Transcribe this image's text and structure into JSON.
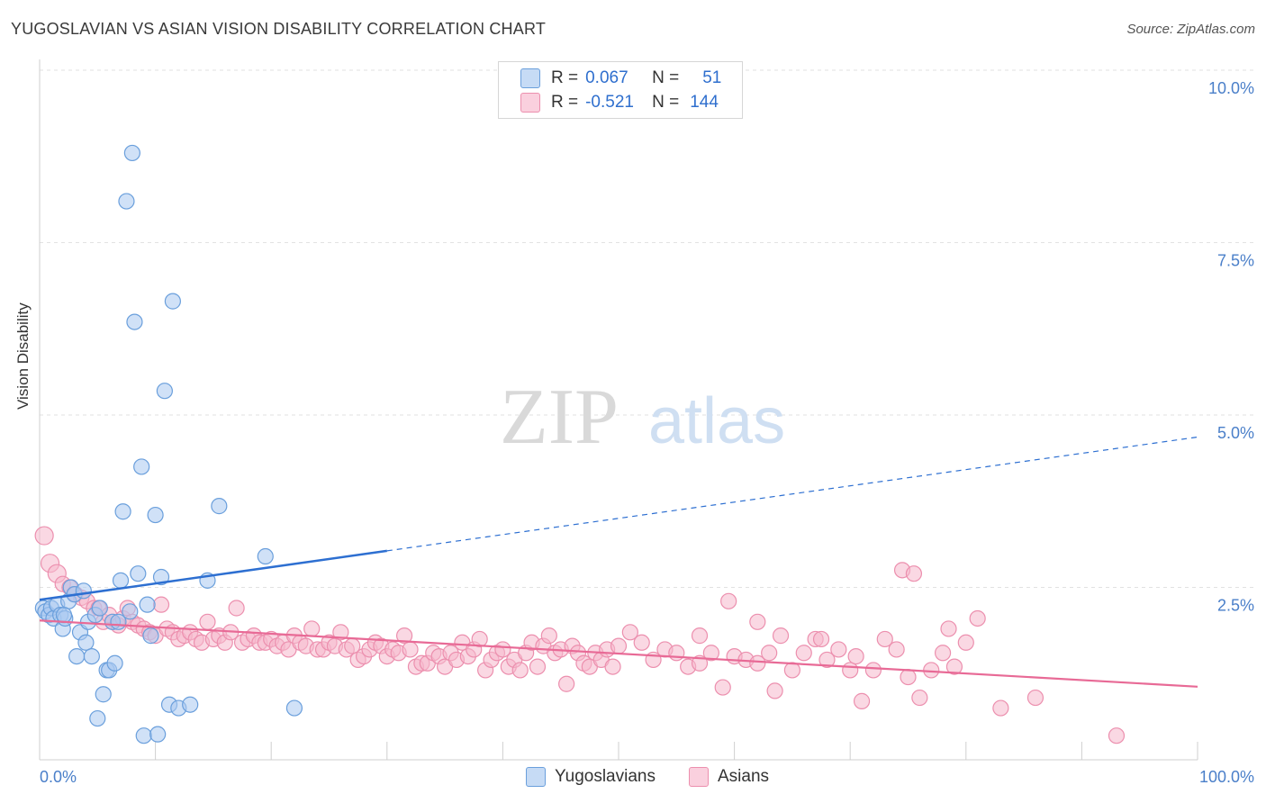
{
  "header": {
    "title": "YUGOSLAVIAN VS ASIAN VISION DISABILITY CORRELATION CHART",
    "source": "Source: ZipAtlas.com"
  },
  "watermark": {
    "zip": "ZIP",
    "atlas": "atlas"
  },
  "legend": {
    "rows": [
      {
        "r_label": "R =",
        "r_value": "0.067",
        "n_label": "N =",
        "n_value": "51",
        "color": "#a9c8f0"
      },
      {
        "r_label": "R =",
        "r_value": "-0.521",
        "n_label": "N =",
        "n_value": "144",
        "color": "#f6b8cc"
      }
    ]
  },
  "colors": {
    "blue_fill": "#a9c8f0",
    "blue_stroke": "#6a9fdc",
    "blue_line": "#2d6fd1",
    "pink_fill": "#f6b8cc",
    "pink_stroke": "#ec8fae",
    "pink_line": "#e86a96",
    "tick_label": "#4a7fc9"
  },
  "chart_data": {
    "type": "scatter",
    "title": "YUGOSLAVIAN VS ASIAN VISION DISABILITY CORRELATION CHART",
    "xlabel": "",
    "ylabel": "Vision Disability",
    "xlim": [
      0,
      100
    ],
    "ylim": [
      0,
      10
    ],
    "x_tick_labels": [
      "0.0%",
      "100.0%"
    ],
    "y_ticks": [
      2.5,
      5.0,
      7.5,
      10.0
    ],
    "y_tick_labels": [
      "2.5%",
      "5.0%",
      "7.5%",
      "10.0%"
    ],
    "grid": true,
    "legend_position": "top-center",
    "series": [
      {
        "name": "Yugoslavians",
        "trend": {
          "x0": 0,
          "y0": 2.32,
          "x1": 30,
          "y1": 3.03,
          "dashed_to_x": 100,
          "dashed_to_y": 4.68
        },
        "points": [
          [
            0.3,
            2.2
          ],
          [
            0.5,
            2.15
          ],
          [
            0.8,
            2.1
          ],
          [
            1.0,
            2.2
          ],
          [
            1.2,
            2.05
          ],
          [
            1.5,
            2.25
          ],
          [
            1.8,
            2.1
          ],
          [
            2.0,
            1.9
          ],
          [
            2.2,
            2.05
          ],
          [
            2.5,
            2.3
          ],
          [
            2.7,
            2.5
          ],
          [
            3.0,
            2.4
          ],
          [
            3.2,
            1.5
          ],
          [
            3.5,
            1.85
          ],
          [
            3.8,
            2.45
          ],
          [
            4.0,
            1.7
          ],
          [
            4.2,
            2.0
          ],
          [
            4.5,
            1.5
          ],
          [
            4.8,
            2.1
          ],
          [
            5.0,
            0.6
          ],
          [
            5.2,
            2.2
          ],
          [
            5.5,
            0.95
          ],
          [
            5.8,
            1.3
          ],
          [
            6.0,
            1.3
          ],
          [
            6.3,
            2.0
          ],
          [
            6.5,
            1.4
          ],
          [
            6.8,
            2.0
          ],
          [
            7.0,
            2.6
          ],
          [
            7.2,
            3.6
          ],
          [
            7.5,
            8.1
          ],
          [
            7.8,
            2.15
          ],
          [
            8.0,
            8.8
          ],
          [
            8.2,
            6.35
          ],
          [
            8.5,
            2.7
          ],
          [
            8.8,
            4.25
          ],
          [
            9.0,
            0.35
          ],
          [
            9.3,
            2.25
          ],
          [
            9.6,
            1.8
          ],
          [
            10.0,
            3.55
          ],
          [
            10.2,
            0.37
          ],
          [
            10.5,
            2.65
          ],
          [
            10.8,
            5.35
          ],
          [
            11.2,
            0.8
          ],
          [
            11.5,
            6.65
          ],
          [
            12.0,
            0.75
          ],
          [
            13.0,
            0.8
          ],
          [
            14.5,
            2.6
          ],
          [
            15.5,
            3.68
          ],
          [
            19.5,
            2.95
          ],
          [
            22.0,
            0.75
          ],
          [
            2.1,
            2.1
          ]
        ]
      },
      {
        "name": "Asians",
        "trend": {
          "x0": 0,
          "y0": 2.02,
          "x1": 100,
          "y1": 1.06
        },
        "points": [
          [
            0.4,
            3.25
          ],
          [
            0.9,
            2.85
          ],
          [
            1.5,
            2.7
          ],
          [
            2.0,
            2.55
          ],
          [
            2.6,
            2.5
          ],
          [
            3.1,
            2.4
          ],
          [
            3.6,
            2.35
          ],
          [
            4.1,
            2.3
          ],
          [
            4.7,
            2.2
          ],
          [
            5.1,
            2.2
          ],
          [
            5.5,
            2.0
          ],
          [
            6.0,
            2.1
          ],
          [
            6.3,
            2.0
          ],
          [
            6.8,
            1.95
          ],
          [
            7.2,
            2.05
          ],
          [
            7.6,
            2.2
          ],
          [
            8.0,
            2.0
          ],
          [
            8.5,
            1.95
          ],
          [
            9.0,
            1.9
          ],
          [
            9.5,
            1.85
          ],
          [
            10.0,
            1.8
          ],
          [
            10.5,
            2.25
          ],
          [
            11.0,
            1.9
          ],
          [
            11.5,
            1.85
          ],
          [
            12.0,
            1.75
          ],
          [
            12.5,
            1.8
          ],
          [
            13.0,
            1.85
          ],
          [
            13.5,
            1.75
          ],
          [
            14.0,
            1.7
          ],
          [
            14.5,
            2.0
          ],
          [
            15.0,
            1.75
          ],
          [
            15.5,
            1.8
          ],
          [
            16.0,
            1.7
          ],
          [
            16.5,
            1.85
          ],
          [
            17.0,
            2.2
          ],
          [
            17.5,
            1.7
          ],
          [
            18.0,
            1.75
          ],
          [
            18.5,
            1.8
          ],
          [
            19.0,
            1.7
          ],
          [
            19.5,
            1.7
          ],
          [
            20.0,
            1.75
          ],
          [
            20.5,
            1.65
          ],
          [
            21.0,
            1.7
          ],
          [
            21.5,
            1.6
          ],
          [
            22.0,
            1.8
          ],
          [
            22.5,
            1.7
          ],
          [
            23.0,
            1.65
          ],
          [
            23.5,
            1.9
          ],
          [
            24.0,
            1.6
          ],
          [
            24.5,
            1.6
          ],
          [
            25.0,
            1.7
          ],
          [
            25.5,
            1.65
          ],
          [
            26.0,
            1.85
          ],
          [
            26.5,
            1.6
          ],
          [
            27.0,
            1.65
          ],
          [
            27.5,
            1.45
          ],
          [
            28.0,
            1.5
          ],
          [
            28.5,
            1.6
          ],
          [
            29.0,
            1.7
          ],
          [
            29.5,
            1.65
          ],
          [
            30.0,
            1.5
          ],
          [
            30.5,
            1.6
          ],
          [
            31.0,
            1.55
          ],
          [
            31.5,
            1.8
          ],
          [
            32.0,
            1.6
          ],
          [
            32.5,
            1.35
          ],
          [
            33.0,
            1.4
          ],
          [
            33.5,
            1.4
          ],
          [
            34.0,
            1.55
          ],
          [
            34.5,
            1.5
          ],
          [
            35.0,
            1.35
          ],
          [
            35.5,
            1.55
          ],
          [
            36.0,
            1.45
          ],
          [
            36.5,
            1.7
          ],
          [
            37.0,
            1.5
          ],
          [
            37.5,
            1.6
          ],
          [
            38.0,
            1.75
          ],
          [
            38.5,
            1.3
          ],
          [
            39.0,
            1.45
          ],
          [
            39.5,
            1.55
          ],
          [
            40.0,
            1.6
          ],
          [
            40.5,
            1.35
          ],
          [
            41.0,
            1.45
          ],
          [
            41.5,
            1.3
          ],
          [
            42.0,
            1.55
          ],
          [
            42.5,
            1.7
          ],
          [
            43.0,
            1.35
          ],
          [
            43.5,
            1.65
          ],
          [
            44.0,
            1.8
          ],
          [
            44.5,
            1.55
          ],
          [
            45.0,
            1.6
          ],
          [
            45.5,
            1.1
          ],
          [
            46.0,
            1.65
          ],
          [
            46.5,
            1.55
          ],
          [
            47.0,
            1.4
          ],
          [
            47.5,
            1.35
          ],
          [
            48.0,
            1.55
          ],
          [
            48.5,
            1.45
          ],
          [
            49.0,
            1.6
          ],
          [
            49.5,
            1.35
          ],
          [
            50.0,
            1.65
          ],
          [
            51.0,
            1.85
          ],
          [
            52.0,
            1.7
          ],
          [
            53.0,
            1.45
          ],
          [
            54.0,
            1.6
          ],
          [
            55.0,
            1.55
          ],
          [
            56.0,
            1.35
          ],
          [
            57.0,
            1.4
          ],
          [
            58.0,
            1.55
          ],
          [
            59.0,
            1.05
          ],
          [
            60.0,
            1.5
          ],
          [
            61.0,
            1.45
          ],
          [
            62.0,
            1.4
          ],
          [
            63.0,
            1.55
          ],
          [
            64.0,
            1.8
          ],
          [
            65.0,
            1.3
          ],
          [
            66.0,
            1.55
          ],
          [
            67.0,
            1.75
          ],
          [
            68.0,
            1.45
          ],
          [
            69.0,
            1.6
          ],
          [
            70.0,
            1.3
          ],
          [
            71.0,
            0.85
          ],
          [
            72.0,
            1.3
          ],
          [
            73.0,
            1.75
          ],
          [
            74.0,
            1.6
          ],
          [
            75.0,
            1.2
          ],
          [
            76.0,
            0.9
          ],
          [
            77.0,
            1.3
          ],
          [
            78.0,
            1.55
          ],
          [
            79.0,
            1.35
          ],
          [
            81.0,
            2.05
          ],
          [
            83.0,
            0.75
          ],
          [
            86.0,
            0.9
          ],
          [
            93.0,
            0.35
          ],
          [
            57.0,
            1.8
          ],
          [
            59.5,
            2.3
          ],
          [
            63.5,
            1.0
          ],
          [
            67.5,
            1.75
          ],
          [
            70.5,
            1.5
          ],
          [
            74.5,
            2.75
          ],
          [
            75.5,
            2.7
          ],
          [
            78.5,
            1.9
          ],
          [
            80.0,
            1.7
          ],
          [
            62.0,
            2.0
          ]
        ]
      }
    ]
  }
}
